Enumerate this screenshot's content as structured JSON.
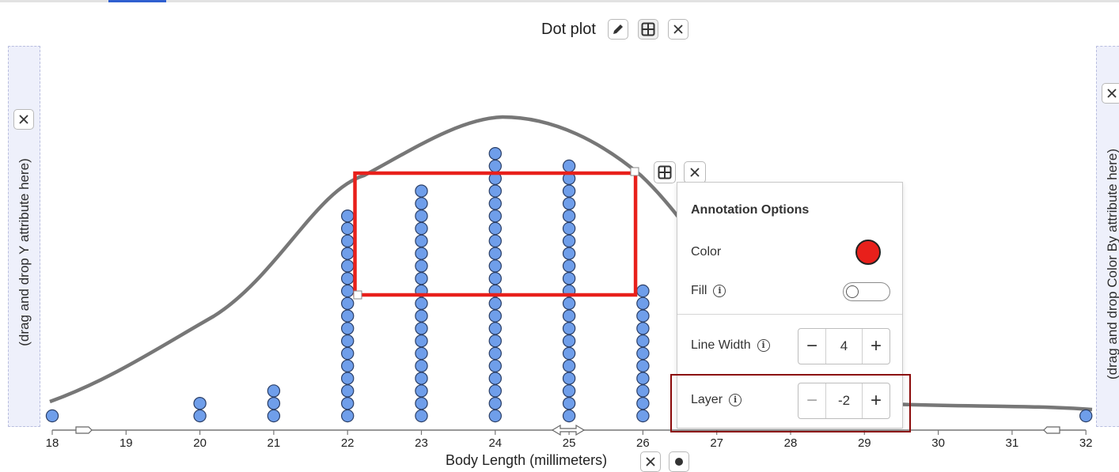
{
  "plot": {
    "title": "Dot plot",
    "y_dropzone_text": "(drag and drop Y attribute here)",
    "color_dropzone_text": "(drag and drop Color By attribute here)",
    "x_axis_label": "Body Length (millimeters)"
  },
  "icons": {
    "edit": "pencil-icon",
    "table": "table-grid-icon",
    "close": "close-icon",
    "settings": "gear-icon",
    "info": "info-icon"
  },
  "annotation_options": {
    "title": "Annotation Options",
    "color_label": "Color",
    "color_value": "#e8201b",
    "fill_label": "Fill",
    "fill_on": false,
    "line_width_label": "Line Width",
    "line_width_value": "4",
    "layer_label": "Layer",
    "layer_value": "-2",
    "minus": "−",
    "plus": "+"
  },
  "info_glyph": "i",
  "chart_data": {
    "type": "scatter",
    "xlabel": "Body Length (millimeters)",
    "xlim": [
      18,
      32
    ],
    "ticks": [
      18,
      19,
      20,
      21,
      22,
      23,
      24,
      25,
      26,
      27,
      28,
      29,
      30,
      31,
      32
    ],
    "dot_counts": [
      {
        "x": 18,
        "count": 1
      },
      {
        "x": 20,
        "count": 2
      },
      {
        "x": 21,
        "count": 3
      },
      {
        "x": 22,
        "count": 17
      },
      {
        "x": 23,
        "count": 19
      },
      {
        "x": 24,
        "count": 22
      },
      {
        "x": 25,
        "count": 21
      },
      {
        "x": 26,
        "count": 11
      },
      {
        "x": 32,
        "count": 1
      }
    ],
    "dot_color": "#6f9eea",
    "curve_color": "#777777",
    "annotation_rect_color": "#e8201b",
    "annotation_rect_x": [
      22.1,
      25.9
    ]
  }
}
